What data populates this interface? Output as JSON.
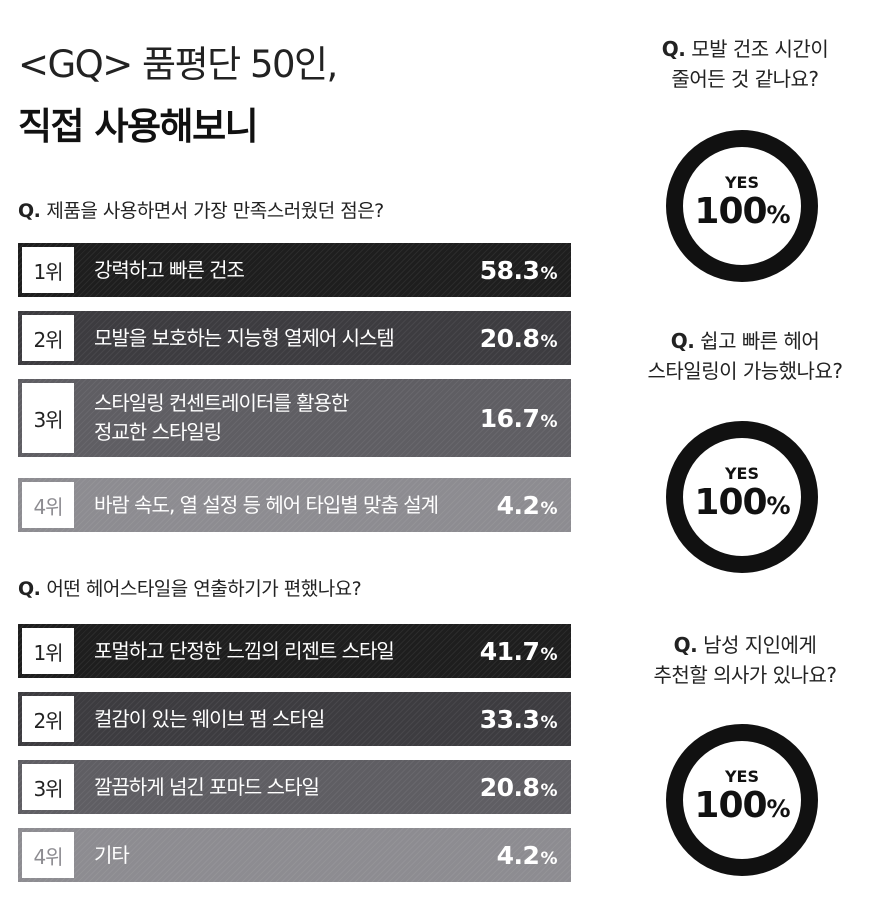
{
  "header": {
    "title_line1": "<GQ> 품평단 50인,",
    "title_line2": "직접 사용해보니"
  },
  "colors": {
    "rank1": "#1e1e1e",
    "rank2": "#3d3c40",
    "rank3": "#5f5e63",
    "rank4": "#8d8c91",
    "donut": "#111111"
  },
  "chart_data": [
    {
      "type": "bar",
      "title": "Q. 제품을 사용하면서 가장 만족스러웠던 점은?",
      "question_mark": "Q.",
      "question_text": "제품을 사용하면서 가장 만족스러웠던 점은?",
      "categories": [
        "강력하고 빠른 건조",
        "모발을 보호하는 지능형 열제어 시스템",
        "스타일링 컨센트레이터를 활용한\n정교한 스타일링",
        "바람 속도, 열 설정 등 헤어 타입별 맞춤 설계"
      ],
      "ranks": [
        "1위",
        "2위",
        "3위",
        "4위"
      ],
      "values": [
        58.3,
        20.8,
        16.7,
        4.2
      ],
      "value_labels": [
        "58.3",
        "20.8",
        "16.7",
        "4.2"
      ],
      "unit": "%"
    },
    {
      "type": "bar",
      "title": "Q. 어떤 헤어스타일을 연출하기가 편했나요?",
      "question_mark": "Q.",
      "question_text": "어떤 헤어스타일을 연출하기가 편했나요?",
      "categories": [
        "포멀하고 단정한 느낌의 리젠트 스타일",
        "컬감이 있는 웨이브 펌 스타일",
        "깔끔하게 넘긴 포마드 스타일",
        "기타"
      ],
      "ranks": [
        "1위",
        "2위",
        "3위",
        "4위"
      ],
      "values": [
        41.7,
        33.3,
        20.8,
        4.2
      ],
      "value_labels": [
        "41.7",
        "33.3",
        "20.8",
        "4.2"
      ],
      "unit": "%"
    },
    {
      "type": "pie",
      "title": "Q. 모발 건조 시간이\n줄어든 것 같나요?",
      "question_mark": "Q.",
      "question_text": "모발 건조 시간이\n줄어든 것 같나요?",
      "categories": [
        "YES"
      ],
      "values": [
        100
      ],
      "value_label": "100",
      "unit": "%"
    },
    {
      "type": "pie",
      "title": "Q. 쉽고 빠른 헤어\n스타일링이 가능했나요?",
      "question_mark": "Q.",
      "question_text": "쉽고 빠른 헤어\n스타일링이 가능했나요?",
      "categories": [
        "YES"
      ],
      "values": [
        100
      ],
      "value_label": "100",
      "unit": "%"
    },
    {
      "type": "pie",
      "title": "Q. 남성 지인에게\n추천할 의사가 있나요?",
      "question_mark": "Q.",
      "question_text": "남성 지인에게\n추천할 의사가 있나요?",
      "categories": [
        "YES"
      ],
      "values": [
        100
      ],
      "value_label": "100",
      "unit": "%"
    }
  ]
}
